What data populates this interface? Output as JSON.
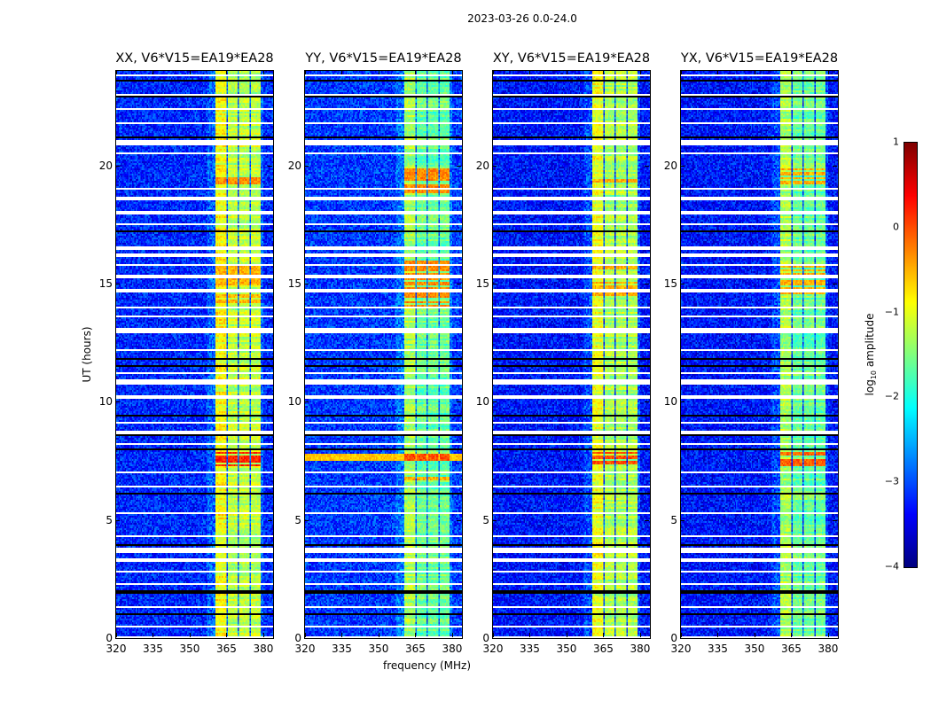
{
  "chart_data": {
    "type": "heatmap",
    "title": "2023-03-26 0.0-24.0",
    "xlabel": "frequency (MHz)",
    "ylabel": "UT (hours)",
    "xlim": [
      320,
      384
    ],
    "ylim": [
      0,
      24
    ],
    "xticks": [
      320,
      335,
      350,
      365,
      380
    ],
    "yticks": [
      0,
      5,
      10,
      15,
      20
    ],
    "colorbar": {
      "label_prefix": "log",
      "label_sub": "10",
      "label_suffix": " amplitude",
      "range": [
        -4,
        1
      ],
      "ticks": [
        1,
        0,
        -1,
        -2,
        -3,
        -4
      ],
      "tick_labels": [
        "1",
        "0",
        "−1",
        "−2",
        "−3",
        "−4"
      ],
      "colormap": "jet"
    },
    "subbands_mhz": [
      [
        360.5,
        364.8
      ],
      [
        365.7,
        369.7
      ],
      [
        370.1,
        374.3
      ],
      [
        374.8,
        379.1
      ]
    ],
    "flagged_hours": [
      [
        20.85,
        21.05
      ],
      [
        12.9,
        13.1
      ],
      [
        10.7,
        10.95
      ],
      [
        3.6,
        3.8
      ],
      [
        0.0,
        0.1
      ]
    ],
    "thin_flag_hours": [
      0.5,
      1.3,
      2.3,
      2.8,
      3.3,
      4.3,
      5.3,
      6.4,
      7.0,
      8.2,
      8.7,
      9.1,
      10.2,
      11.2,
      12.2,
      13.6,
      14.0,
      14.7,
      15.3,
      15.8,
      16.2,
      16.5,
      17.5,
      18.0,
      18.6,
      19.0,
      20.5,
      21.8,
      22.4,
      23.0,
      23.8
    ],
    "black_line_hours": [
      1.0,
      1.9,
      2.0,
      3.95,
      4.05,
      6.0,
      6.1,
      8.0,
      8.6,
      9.3,
      9.4,
      10.5,
      11.5,
      11.8,
      12.0,
      17.1,
      17.2,
      21.2,
      22.9,
      23.6
    ],
    "panels": [
      {
        "title": "XX, V6*V15=EA19*EA28",
        "background": -3.2,
        "band_level": -1.2,
        "rfi_rows": [
          {
            "from": 7.2,
            "to": 7.9,
            "level": 0.2
          },
          {
            "from": 19.2,
            "to": 19.5,
            "level": -0.3
          },
          {
            "from": 14.2,
            "to": 15.8,
            "level": -0.5
          }
        ]
      },
      {
        "title": "YY, V6*V15=EA19*EA28",
        "background": -3.1,
        "band_level": -1.6,
        "rfi_rows": [
          {
            "from": 7.5,
            "to": 7.8,
            "level": 0.0,
            "broadband": true
          },
          {
            "from": 18.8,
            "to": 19.9,
            "level": -0.3
          },
          {
            "from": 14.0,
            "to": 16.0,
            "level": -0.3
          },
          {
            "from": 6.7,
            "to": 6.9,
            "level": -0.5
          }
        ]
      },
      {
        "title": "XY, V6*V15=EA19*EA28",
        "background": -3.3,
        "band_level": -1.3,
        "rfi_rows": [
          {
            "from": 7.2,
            "to": 7.9,
            "level": 0.0
          },
          {
            "from": 19.2,
            "to": 19.5,
            "level": -0.5
          },
          {
            "from": 14.5,
            "to": 15.8,
            "level": -0.5
          }
        ]
      },
      {
        "title": "YX, V6*V15=EA19*EA28",
        "background": -3.3,
        "band_level": -1.6,
        "rfi_rows": [
          {
            "from": 7.3,
            "to": 7.9,
            "level": -0.1
          },
          {
            "from": 19.0,
            "to": 19.9,
            "level": -0.5
          },
          {
            "from": 14.5,
            "to": 15.8,
            "level": -0.5
          }
        ]
      }
    ]
  }
}
